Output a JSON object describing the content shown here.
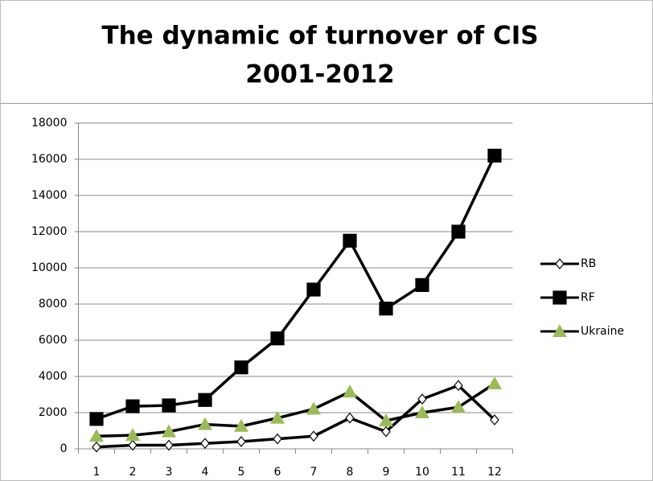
{
  "chart_data": {
    "type": "line",
    "title": "The dynamic of turnover of CIS",
    "subtitle": "2001-2012",
    "categories": [
      "1",
      "2",
      "3",
      "4",
      "5",
      "6",
      "7",
      "8",
      "9",
      "10",
      "11",
      "12"
    ],
    "series": [
      {
        "name": "RB",
        "color": "#000000",
        "marker": "diamond",
        "marker_fill": "#ffffff",
        "values": [
          100,
          200,
          200,
          300,
          400,
          550,
          700,
          1700,
          950,
          2750,
          3500,
          1600
        ]
      },
      {
        "name": "RF",
        "color": "#000000",
        "marker": "square",
        "marker_fill": "#000000",
        "values": [
          1650,
          2350,
          2400,
          2700,
          4500,
          6100,
          8800,
          11500,
          7750,
          9050,
          12000,
          16200
        ]
      },
      {
        "name": "Ukraine",
        "color": "#000000",
        "marker": "triangle",
        "marker_fill": "#9bbb59",
        "values": [
          700,
          750,
          950,
          1350,
          1250,
          1700,
          2200,
          3150,
          1550,
          2000,
          2300,
          3600
        ]
      }
    ],
    "ylim": [
      0,
      18000
    ],
    "yticks": [
      0,
      2000,
      4000,
      6000,
      8000,
      10000,
      12000,
      14000,
      16000,
      18000
    ],
    "grid": true,
    "legend": "right"
  }
}
